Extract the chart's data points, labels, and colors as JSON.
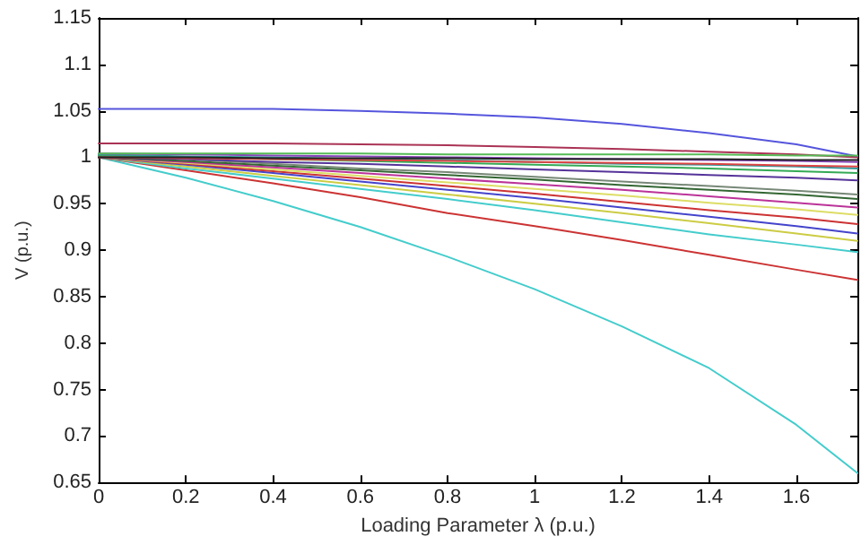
{
  "chart_data": {
    "type": "line",
    "xlabel": "Loading Parameter λ (p.u.)",
    "ylabel": "V (p.u.)",
    "x": [
      0,
      0.2,
      0.4,
      0.6,
      0.8,
      1.0,
      1.2,
      1.4,
      1.6,
      1.74
    ],
    "xlim": [
      0,
      1.74
    ],
    "xticks": [
      0,
      0.2,
      0.4,
      0.6,
      0.8,
      1,
      1.2,
      1.4,
      1.6
    ],
    "ylim": [
      0.65,
      1.15
    ],
    "yticks": [
      0.65,
      0.7,
      0.75,
      0.8,
      0.85,
      0.9,
      0.95,
      1,
      1.05,
      1.1,
      1.15
    ],
    "grid": false,
    "marker": "none",
    "line_style": "solid",
    "series": [
      {
        "color": "#5555dd",
        "values": [
          1.052,
          1.052,
          1.052,
          1.05,
          1.047,
          1.043,
          1.036,
          1.026,
          1.014,
          1.001
        ]
      },
      {
        "color": "#aa3355",
        "values": [
          1.015,
          1.015,
          1.015,
          1.014,
          1.013,
          1.011,
          1.009,
          1.006,
          1.003,
          1.0
        ]
      },
      {
        "color": "#44cccc",
        "values": [
          1.0,
          0.978,
          0.953,
          0.925,
          0.893,
          0.858,
          0.818,
          0.773,
          0.712,
          0.66
        ]
      },
      {
        "color": "#cc3333",
        "values": [
          1.0,
          0.986,
          0.972,
          0.957,
          0.94,
          0.926,
          0.911,
          0.895,
          0.879,
          0.868
        ]
      },
      {
        "color": "#44cccc",
        "values": [
          1.0,
          0.988,
          0.977,
          0.966,
          0.955,
          0.943,
          0.93,
          0.917,
          0.906,
          0.898
        ]
      },
      {
        "color": "#cccc44",
        "values": [
          1.0,
          0.99,
          0.98,
          0.97,
          0.96,
          0.95,
          0.94,
          0.929,
          0.918,
          0.91
        ]
      },
      {
        "color": "#4444cc",
        "values": [
          1.0,
          0.992,
          0.983,
          0.974,
          0.965,
          0.956,
          0.946,
          0.936,
          0.926,
          0.918
        ]
      },
      {
        "color": "#cc3333",
        "values": [
          1.0,
          0.993,
          0.985,
          0.977,
          0.969,
          0.961,
          0.952,
          0.943,
          0.935,
          0.928
        ]
      },
      {
        "color": "#dddd66",
        "values": [
          1.0,
          0.994,
          0.987,
          0.98,
          0.973,
          0.966,
          0.959,
          0.951,
          0.944,
          0.938
        ]
      },
      {
        "color": "#bb3399",
        "values": [
          1.0,
          0.995,
          0.989,
          0.983,
          0.977,
          0.971,
          0.965,
          0.958,
          0.951,
          0.946
        ]
      },
      {
        "color": "#336633",
        "values": [
          1.0,
          0.996,
          0.991,
          0.986,
          0.981,
          0.976,
          0.97,
          0.965,
          0.96,
          0.955
        ]
      },
      {
        "color": "#778877",
        "values": [
          1.002,
          0.998,
          0.993,
          0.988,
          0.984,
          0.979,
          0.974,
          0.969,
          0.964,
          0.96
        ]
      },
      {
        "color": "#553399",
        "values": [
          1.0,
          0.998,
          0.995,
          0.993,
          0.99,
          0.987,
          0.984,
          0.981,
          0.978,
          0.975
        ]
      },
      {
        "color": "#33aa55",
        "values": [
          1.002,
          1.0,
          0.998,
          0.996,
          0.994,
          0.992,
          0.99,
          0.988,
          0.985,
          0.983
        ]
      },
      {
        "color": "#339999",
        "values": [
          1.003,
          1.001,
          1.0,
          0.998,
          0.997,
          0.995,
          0.993,
          0.992,
          0.99,
          0.988
        ]
      },
      {
        "color": "#dd4444",
        "values": [
          1.0,
          0.999,
          0.998,
          0.997,
          0.996,
          0.995,
          0.994,
          0.993,
          0.991,
          0.99
        ]
      },
      {
        "color": "#8844bb",
        "values": [
          1.004,
          1.003,
          1.002,
          1.001,
          1.0,
          0.999,
          0.998,
          0.997,
          0.996,
          0.995
        ]
      },
      {
        "color": "#222222",
        "values": [
          1.0,
          1.0,
          0.999,
          0.999,
          0.999,
          0.998,
          0.998,
          0.998,
          0.997,
          0.997
        ]
      },
      {
        "color": "#55bb55",
        "values": [
          1.004,
          1.004,
          1.004,
          1.004,
          1.003,
          1.003,
          1.003,
          1.003,
          1.002,
          1.002
        ]
      }
    ]
  }
}
